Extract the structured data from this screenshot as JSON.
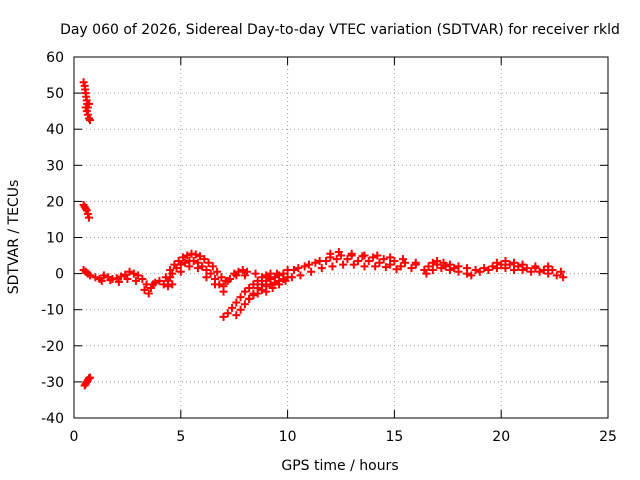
{
  "chart_data": {
    "type": "scatter",
    "title": "Day 060 of 2026, Sidereal Day-to-day VTEC variation (SDTVAR) for receiver rkld",
    "xlabel": "GPS time / hours",
    "ylabel": "SDTVAR / TECUs",
    "xlim": [
      0,
      25
    ],
    "ylim": [
      -40,
      60
    ],
    "x_ticks": [
      0,
      5,
      10,
      15,
      20,
      25
    ],
    "y_ticks": [
      -40,
      -30,
      -20,
      -10,
      0,
      10,
      20,
      30,
      40,
      50,
      60
    ],
    "grid": true,
    "marker": "+",
    "colors": {
      "series": "#ff0000",
      "grid": "#a0a0a0",
      "axes": "#000000"
    },
    "series": [
      {
        "name": "SDTVAR",
        "points": [
          [
            0.45,
            53
          ],
          [
            0.5,
            52
          ],
          [
            0.52,
            51
          ],
          [
            0.55,
            50
          ],
          [
            0.57,
            49
          ],
          [
            0.6,
            48
          ],
          [
            0.62,
            47
          ],
          [
            0.65,
            46
          ],
          [
            0.6,
            45
          ],
          [
            0.65,
            44
          ],
          [
            0.7,
            43
          ],
          [
            0.75,
            42.5
          ],
          [
            0.55,
            46
          ],
          [
            0.7,
            47
          ],
          [
            0.45,
            19
          ],
          [
            0.5,
            18.5
          ],
          [
            0.55,
            18
          ],
          [
            0.6,
            17.5
          ],
          [
            0.65,
            16.5
          ],
          [
            0.7,
            15.5
          ],
          [
            0.45,
            1
          ],
          [
            0.55,
            0.5
          ],
          [
            0.65,
            0
          ],
          [
            0.75,
            -0.5
          ],
          [
            0.5,
            -31
          ],
          [
            0.55,
            -30.5
          ],
          [
            0.6,
            -30
          ],
          [
            0.65,
            -29.5
          ],
          [
            0.7,
            -29
          ],
          [
            0.75,
            -28.8
          ],
          [
            1.0,
            -1
          ],
          [
            1.2,
            -1.5
          ],
          [
            1.4,
            -0.5
          ],
          [
            1.6,
            -1
          ],
          [
            1.8,
            -1.5
          ],
          [
            2.0,
            -1.3
          ],
          [
            2.2,
            -0.8
          ],
          [
            2.4,
            -0.3
          ],
          [
            2.6,
            0.5
          ],
          [
            2.8,
            0
          ],
          [
            3.0,
            -0.5
          ],
          [
            3.2,
            -1.5
          ],
          [
            3.4,
            -3
          ],
          [
            3.6,
            -4
          ],
          [
            3.8,
            -2.5
          ],
          [
            4.0,
            -2
          ],
          [
            4.2,
            -3
          ],
          [
            4.4,
            -3.5
          ],
          [
            1.3,
            -2
          ],
          [
            1.7,
            -1.8
          ],
          [
            2.1,
            -2.3
          ],
          [
            2.5,
            -1.5
          ],
          [
            2.9,
            -2
          ],
          [
            3.3,
            -4.5
          ],
          [
            3.5,
            -5.5
          ],
          [
            3.7,
            -3
          ],
          [
            4.5,
            -1
          ],
          [
            4.3,
            -1
          ],
          [
            4.5,
            1
          ],
          [
            4.7,
            2.5
          ],
          [
            4.9,
            3.5
          ],
          [
            5.1,
            4.5
          ],
          [
            5.3,
            5
          ],
          [
            5.5,
            5.5
          ],
          [
            5.7,
            5.3
          ],
          [
            5.9,
            4.8
          ],
          [
            6.1,
            4
          ],
          [
            6.3,
            3
          ],
          [
            6.5,
            2
          ],
          [
            6.7,
            0.5
          ],
          [
            6.9,
            -1
          ],
          [
            7.1,
            -2
          ],
          [
            7.3,
            -1.5
          ],
          [
            7.5,
            0
          ],
          [
            7.7,
            0.5
          ],
          [
            7.9,
            1
          ],
          [
            8.1,
            0.5
          ],
          [
            4.4,
            -2
          ],
          [
            4.6,
            0
          ],
          [
            4.8,
            1.5
          ],
          [
            5.0,
            2.5
          ],
          [
            5.2,
            3
          ],
          [
            5.4,
            3.5
          ],
          [
            5.6,
            3.5
          ],
          [
            5.8,
            3
          ],
          [
            6.0,
            2
          ],
          [
            6.2,
            1
          ],
          [
            6.4,
            0
          ],
          [
            6.6,
            -1.5
          ],
          [
            6.8,
            -3
          ],
          [
            7.0,
            -3.5
          ],
          [
            7.2,
            -2
          ],
          [
            7.6,
            -0.5
          ],
          [
            8.0,
            -0.5
          ],
          [
            4.6,
            -3
          ],
          [
            5.0,
            0.5
          ],
          [
            5.4,
            2
          ],
          [
            5.8,
            1.5
          ],
          [
            6.2,
            -1
          ],
          [
            6.6,
            -3
          ],
          [
            7.0,
            -5
          ],
          [
            7.0,
            -12
          ],
          [
            7.2,
            -11
          ],
          [
            7.4,
            -9.5
          ],
          [
            7.6,
            -8
          ],
          [
            7.8,
            -6.5
          ],
          [
            8.0,
            -5
          ],
          [
            8.2,
            -4
          ],
          [
            8.4,
            -3
          ],
          [
            8.6,
            -2
          ],
          [
            8.8,
            -1
          ],
          [
            9.0,
            -0.5
          ],
          [
            9.2,
            0
          ],
          [
            7.6,
            -11.5
          ],
          [
            7.8,
            -10
          ],
          [
            8.0,
            -8.5
          ],
          [
            8.2,
            -7
          ],
          [
            8.4,
            -5.5
          ],
          [
            8.6,
            -4
          ],
          [
            8.8,
            -3
          ],
          [
            9.0,
            -2
          ],
          [
            9.2,
            -1.5
          ],
          [
            9.4,
            -1
          ],
          [
            9.6,
            -0.5
          ],
          [
            8.2,
            -7
          ],
          [
            8.4,
            -6
          ],
          [
            8.6,
            -5.5
          ],
          [
            8.8,
            -4.5
          ],
          [
            9.0,
            -3.5
          ],
          [
            9.2,
            -3
          ],
          [
            9.4,
            -2.5
          ],
          [
            9.6,
            -2
          ],
          [
            9.8,
            -1.5
          ],
          [
            10.0,
            -1
          ],
          [
            9.0,
            -5
          ],
          [
            9.3,
            -4
          ],
          [
            9.6,
            -3
          ],
          [
            9.9,
            -2
          ],
          [
            10.2,
            -1
          ],
          [
            8.5,
            0
          ],
          [
            9.0,
            -1
          ],
          [
            9.5,
            0
          ],
          [
            10.0,
            1
          ],
          [
            10.5,
            1.5
          ],
          [
            11.0,
            2.5
          ],
          [
            11.5,
            3.5
          ],
          [
            12.0,
            4.5
          ],
          [
            12.5,
            5
          ],
          [
            13.0,
            5
          ],
          [
            13.5,
            4.8
          ],
          [
            14.0,
            4.5
          ],
          [
            14.5,
            4
          ],
          [
            15.0,
            3.5
          ],
          [
            15.5,
            3
          ],
          [
            16.0,
            2.5
          ],
          [
            9.8,
            0
          ],
          [
            10.3,
            1
          ],
          [
            10.8,
            2
          ],
          [
            11.3,
            3
          ],
          [
            11.8,
            3.5
          ],
          [
            12.3,
            4
          ],
          [
            12.8,
            4
          ],
          [
            13.3,
            3.5
          ],
          [
            13.8,
            3.5
          ],
          [
            14.3,
            3
          ],
          [
            14.8,
            2.5
          ],
          [
            15.3,
            2
          ],
          [
            15.8,
            1.5
          ],
          [
            10.6,
            -0.5
          ],
          [
            11.1,
            0.5
          ],
          [
            11.6,
            1.5
          ],
          [
            12.1,
            2
          ],
          [
            12.6,
            2.5
          ],
          [
            13.1,
            2.5
          ],
          [
            13.6,
            2
          ],
          [
            14.1,
            2
          ],
          [
            14.6,
            1.8
          ],
          [
            15.1,
            1.2
          ],
          [
            12.0,
            5.5
          ],
          [
            12.4,
            6
          ],
          [
            13.0,
            5.5
          ],
          [
            13.6,
            5
          ],
          [
            14.2,
            5
          ],
          [
            14.8,
            4.5
          ],
          [
            15.4,
            4
          ],
          [
            16.0,
            3
          ],
          [
            16.4,
            1
          ],
          [
            16.6,
            2
          ],
          [
            16.8,
            3
          ],
          [
            17.0,
            3.5
          ],
          [
            17.3,
            3
          ],
          [
            17.6,
            2.5
          ],
          [
            18.0,
            2
          ],
          [
            18.4,
            1.5
          ],
          [
            18.8,
            1
          ],
          [
            19.2,
            1.5
          ],
          [
            19.6,
            2
          ],
          [
            20.0,
            2.5
          ],
          [
            20.4,
            2.5
          ],
          [
            20.8,
            2
          ],
          [
            21.2,
            1.5
          ],
          [
            21.6,
            1.5
          ],
          [
            22.0,
            1
          ],
          [
            22.4,
            1
          ],
          [
            22.8,
            0.5
          ],
          [
            16.5,
            0
          ],
          [
            16.8,
            1
          ],
          [
            17.2,
            1.5
          ],
          [
            17.6,
            1
          ],
          [
            18.0,
            0.5
          ],
          [
            18.4,
            0
          ],
          [
            18.6,
            -0.5
          ],
          [
            19.0,
            0.5
          ],
          [
            19.4,
            1
          ],
          [
            19.8,
            1.5
          ],
          [
            20.2,
            1.5
          ],
          [
            20.6,
            1
          ],
          [
            21.0,
            1
          ],
          [
            21.4,
            0.5
          ],
          [
            21.8,
            0.5
          ],
          [
            22.2,
            0
          ],
          [
            22.6,
            -0.5
          ],
          [
            22.9,
            -1
          ],
          [
            17.0,
            2.5
          ],
          [
            17.4,
            2
          ],
          [
            17.8,
            1.5
          ],
          [
            19.8,
            3
          ],
          [
            20.2,
            3.5
          ],
          [
            20.6,
            3
          ],
          [
            21.0,
            2.5
          ],
          [
            21.6,
            2
          ],
          [
            22.2,
            2
          ]
        ]
      }
    ]
  }
}
